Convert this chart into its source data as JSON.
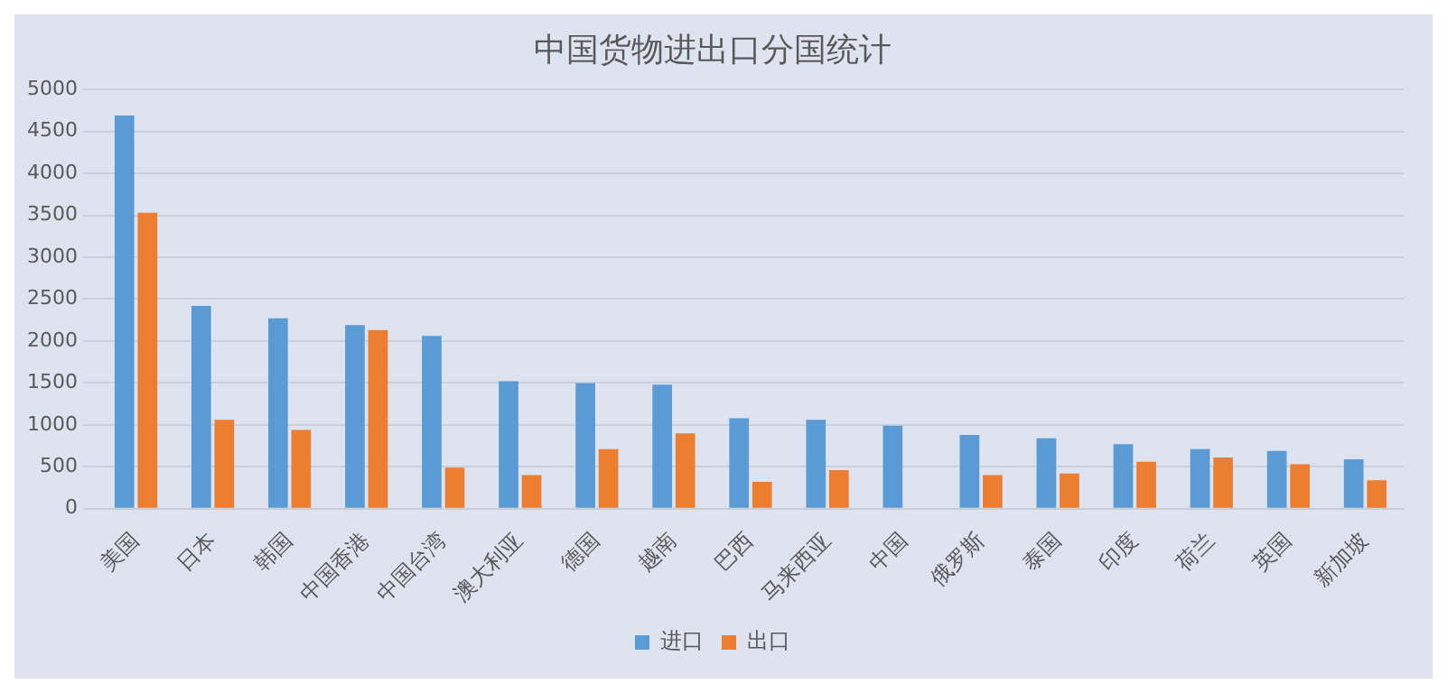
{
  "chart_data": {
    "type": "bar",
    "title": "中国货物进出口分国统计",
    "categories": [
      "美国",
      "日本",
      "韩国",
      "中国香港",
      "中国台湾",
      "澳大利亚",
      "德国",
      "越南",
      "巴西",
      "马来西亚",
      "中国",
      "俄罗斯",
      "泰国",
      "印度",
      "荷兰",
      "英国",
      "新加坡"
    ],
    "series": [
      {
        "name": "进口",
        "color": "#5b9bd5",
        "values": [
          4690,
          2420,
          2270,
          2190,
          2060,
          1520,
          1500,
          1480,
          1080,
          1060,
          990,
          880,
          840,
          770,
          710,
          690,
          590
        ]
      },
      {
        "name": "出口",
        "color": "#ed7d31",
        "values": [
          3530,
          1060,
          940,
          2130,
          490,
          400,
          710,
          900,
          320,
          460,
          null,
          400,
          420,
          560,
          610,
          530,
          340
        ]
      }
    ],
    "ylim": [
      0,
      5000
    ],
    "yticks": [
      0,
      500,
      1000,
      1500,
      2000,
      2500,
      3000,
      3500,
      4000,
      4500,
      5000
    ],
    "grid": "y",
    "legend": "bottom"
  }
}
